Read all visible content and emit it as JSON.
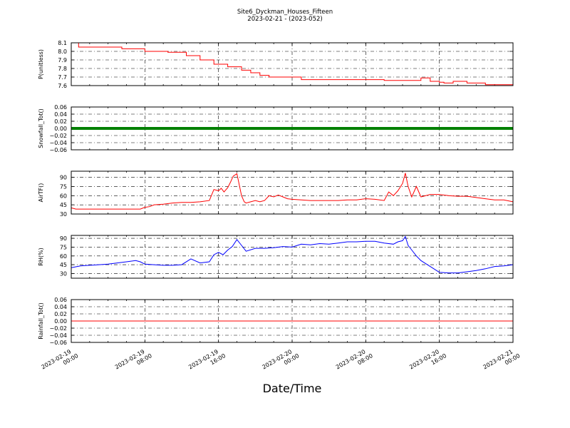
{
  "figure": {
    "title": "Site6_Dyckman_Houses_Fifteen",
    "subtitle": "2023-02-21 - (2023-052)",
    "xlabel": "Date/Time"
  },
  "chart_data": [
    {
      "type": "line",
      "ylabel": "P(unitless)",
      "ylim": [
        7.6,
        8.1
      ],
      "yticks": [
        8.1,
        8.0,
        7.9,
        7.8,
        7.7,
        7.6
      ],
      "ytick_labels": [
        "8.1",
        "8.0",
        "7.9",
        "7.8",
        "7.7",
        "7.6"
      ],
      "xlim": [
        0,
        48
      ],
      "grid": true,
      "color": "#ff0000",
      "step": true,
      "series": [
        {
          "x": [
            0,
            0.8,
            3,
            5.5,
            8,
            10.5,
            11,
            12.5,
            14,
            15.5,
            16,
            17,
            18.5,
            19.5,
            20.5,
            21.5,
            22,
            23,
            25,
            27.5,
            30,
            32,
            34,
            36.5,
            38,
            39,
            40,
            40.5,
            41.5,
            43,
            45,
            48
          ],
          "values": [
            8.1,
            8.05,
            8.05,
            8.03,
            8.0,
            7.99,
            7.99,
            7.95,
            7.9,
            7.85,
            7.85,
            7.82,
            7.78,
            7.75,
            7.72,
            7.7,
            7.7,
            7.7,
            7.67,
            7.67,
            7.67,
            7.67,
            7.66,
            7.66,
            7.69,
            7.65,
            7.64,
            7.63,
            7.65,
            7.63,
            7.61,
            7.6
          ]
        }
      ]
    },
    {
      "type": "scatter",
      "ylabel": "Snowfall_Tot()",
      "ylim": [
        -0.06,
        0.06
      ],
      "yticks": [
        0.06,
        0.04,
        0.02,
        0.0,
        -0.02,
        -0.04,
        -0.06
      ],
      "ytick_labels": [
        "0.06",
        "0.04",
        "0.02",
        "0.00",
        "−0.02",
        "−0.04",
        "−0.06"
      ],
      "xlim": [
        0,
        48
      ],
      "grid": true,
      "color": "#008000",
      "series": [
        {
          "x": [
            0,
            48
          ],
          "values": [
            0.0,
            0.0
          ]
        }
      ]
    },
    {
      "type": "line",
      "ylabel": "AirTF()",
      "ylim": [
        30,
        100
      ],
      "yticks": [
        90,
        75,
        60,
        45,
        30
      ],
      "ytick_labels": [
        "90",
        "75",
        "60",
        "45",
        "30"
      ],
      "xlim": [
        0,
        48
      ],
      "grid": true,
      "color": "#ff0000",
      "series": [
        {
          "x": [
            0,
            0.5,
            1,
            3,
            5,
            7,
            7.5,
            8,
            8.5,
            9,
            10,
            11,
            12,
            13,
            14,
            15,
            15.5,
            16,
            16.3,
            16.6,
            17,
            17.3,
            17.6,
            18,
            18.5,
            18.8,
            19,
            19.5,
            20,
            20.5,
            21,
            21.5,
            22,
            22.5,
            23,
            23.5,
            24,
            25,
            26,
            27,
            28,
            29,
            30,
            31,
            32,
            33,
            34,
            34.5,
            35,
            35.5,
            36,
            36.3,
            36.6,
            37,
            37.5,
            38,
            39,
            40,
            41,
            42,
            43,
            44,
            45,
            46,
            47,
            48
          ],
          "values": [
            40,
            38,
            38,
            38,
            38,
            38,
            38,
            41,
            42,
            45,
            46,
            48,
            49,
            49,
            50,
            52,
            70,
            68,
            72,
            66,
            73,
            82,
            92,
            96,
            60,
            50,
            48,
            50,
            52,
            50,
            52,
            60,
            58,
            61,
            58,
            55,
            54,
            53,
            52,
            52,
            52,
            52,
            53,
            53,
            55,
            54,
            52,
            66,
            60,
            68,
            80,
            97,
            75,
            58,
            75,
            58,
            62,
            62,
            60,
            59,
            59,
            57,
            55,
            53,
            53,
            50
          ]
        }
      ]
    },
    {
      "type": "line",
      "ylabel": "RH(%)",
      "ylim": [
        22,
        95
      ],
      "yticks": [
        90,
        75,
        60,
        45,
        30
      ],
      "ytick_labels": [
        "90",
        "75",
        "60",
        "45",
        "30"
      ],
      "xlim": [
        0,
        48
      ],
      "grid": true,
      "color": "#0000ff",
      "series": [
        {
          "x": [
            0,
            1,
            2,
            3,
            4,
            5,
            6,
            7,
            7.5,
            8,
            9,
            10,
            11,
            12,
            13,
            14,
            15,
            15.5,
            16,
            16.5,
            17,
            17.5,
            18,
            18.5,
            19,
            20,
            21,
            22,
            23,
            24,
            25,
            26,
            27,
            28,
            29,
            30,
            31,
            32,
            33,
            34,
            35,
            35.5,
            36,
            36.3,
            36.6,
            37,
            37.5,
            38,
            39,
            40,
            41,
            42,
            43,
            44,
            45,
            46,
            47,
            48
          ],
          "values": [
            40,
            43,
            44,
            45,
            46,
            48,
            50,
            52,
            50,
            46,
            45,
            44,
            44,
            45,
            55,
            48,
            50,
            62,
            66,
            62,
            70,
            76,
            88,
            78,
            68,
            73,
            73,
            74,
            76,
            75,
            80,
            79,
            81,
            80,
            82,
            84,
            84,
            85,
            85,
            82,
            80,
            84,
            86,
            93,
            78,
            70,
            60,
            52,
            42,
            32,
            31,
            31,
            33,
            35,
            38,
            42,
            43,
            45
          ]
        }
      ]
    },
    {
      "type": "line",
      "ylabel": "Rainfall_Tot()",
      "ylim": [
        -0.06,
        0.06
      ],
      "yticks": [
        0.06,
        0.04,
        0.02,
        0.0,
        -0.02,
        -0.04,
        -0.06
      ],
      "ytick_labels": [
        "0.06",
        "0.04",
        "0.02",
        "0.00",
        "−0.02",
        "−0.04",
        "−0.06"
      ],
      "xlim": [
        0,
        48
      ],
      "grid": true,
      "color": "#ff0000",
      "series": [
        {
          "x": [
            0,
            48
          ],
          "values": [
            0.0,
            0.0
          ]
        }
      ]
    }
  ],
  "xaxis": {
    "ticks": [
      0,
      8,
      16,
      24,
      32,
      40,
      48
    ],
    "tick_labels": [
      [
        "2023-02-19",
        "00:00"
      ],
      [
        "2023-02-19",
        "08:00"
      ],
      [
        "2023-02-19",
        "16:00"
      ],
      [
        "2023-02-20",
        "00:00"
      ],
      [
        "2023-02-20",
        "08:00"
      ],
      [
        "2023-02-20",
        "16:00"
      ],
      [
        "2023-02-21",
        "00:00"
      ]
    ]
  }
}
